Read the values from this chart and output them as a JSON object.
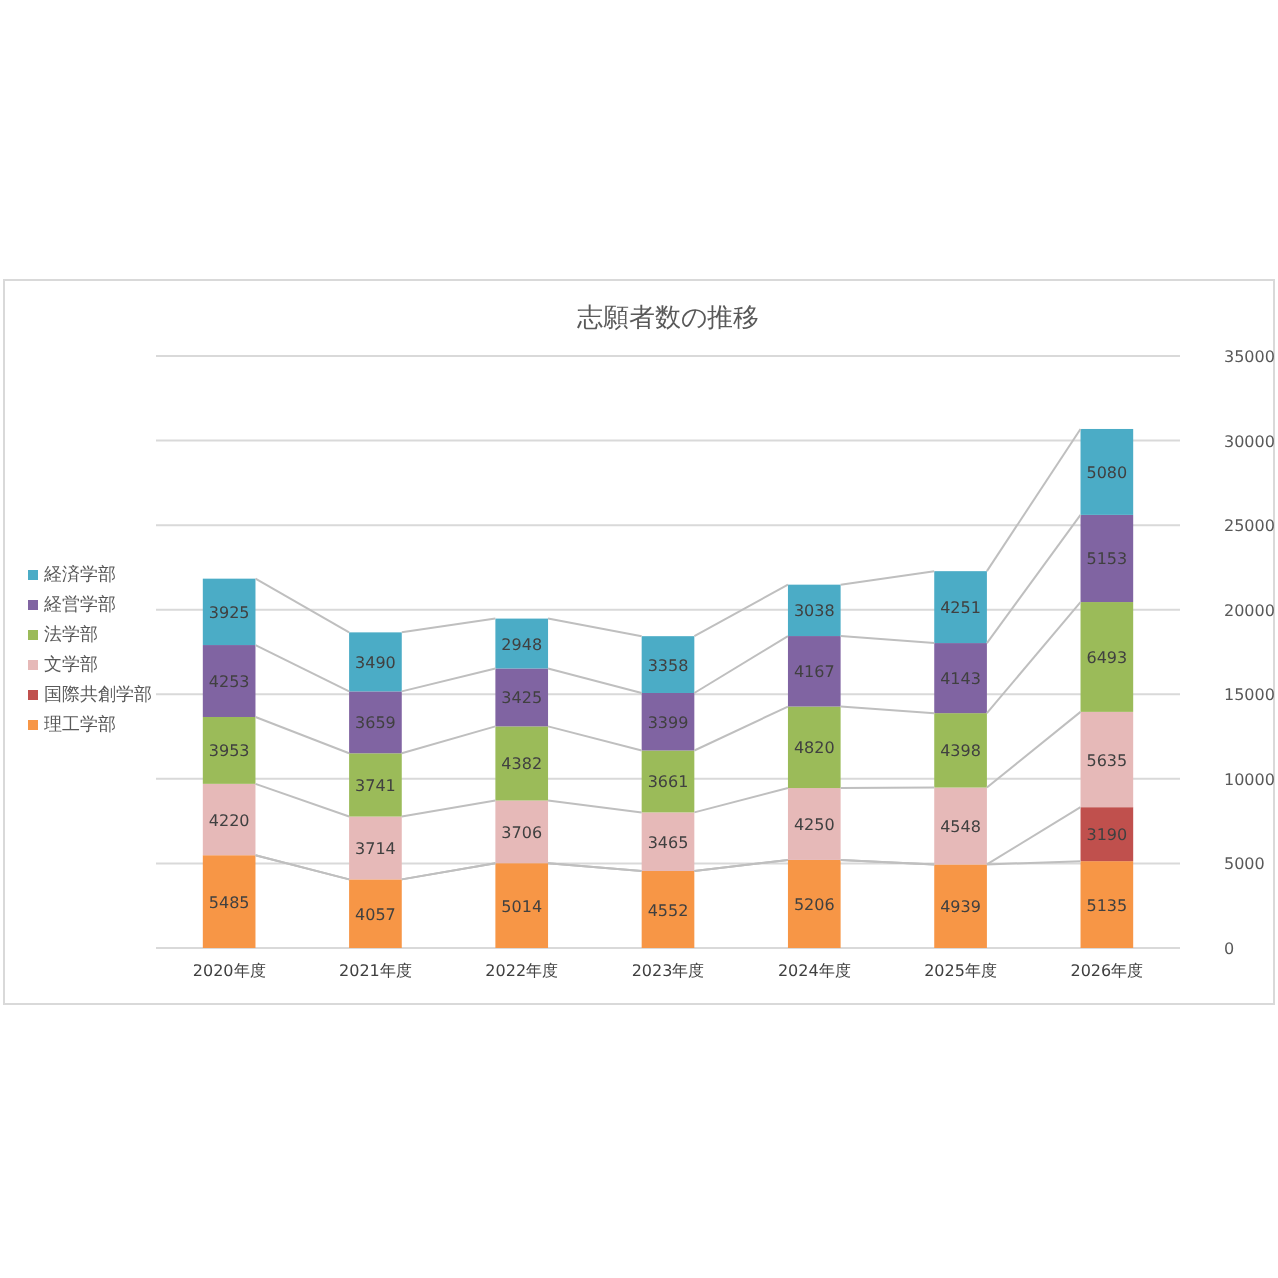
{
  "chart_data": {
    "type": "bar",
    "stacked": true,
    "title": "志願者数の推移",
    "categories": [
      "2020年度",
      "2021年度",
      "2022年度",
      "2023年度",
      "2024年度",
      "2025年度",
      "2026年度"
    ],
    "series": [
      {
        "name": "理工学部",
        "color": "#f79646",
        "values": [
          5485,
          4057,
          5014,
          4552,
          5206,
          4939,
          5135
        ]
      },
      {
        "name": "国際共創学部",
        "color": "#c0504d",
        "values": [
          null,
          null,
          null,
          null,
          null,
          null,
          3190
        ]
      },
      {
        "name": "文学部",
        "color": "#e6b9b8",
        "values": [
          4220,
          3714,
          3706,
          3465,
          4250,
          4548,
          5635
        ]
      },
      {
        "name": "法学部",
        "color": "#9bbb59",
        "values": [
          3953,
          3741,
          4382,
          3661,
          4820,
          4398,
          6493
        ]
      },
      {
        "name": "経営学部",
        "color": "#8064a2",
        "values": [
          4253,
          3659,
          3425,
          3399,
          4167,
          4143,
          5153
        ]
      },
      {
        "name": "経済学部",
        "color": "#4bacc6",
        "values": [
          3925,
          3490,
          2948,
          3358,
          3038,
          4251,
          5080
        ]
      }
    ],
    "ylim": [
      0,
      35000
    ],
    "yticks": [
      0,
      5000,
      10000,
      15000,
      20000,
      25000,
      30000,
      35000
    ],
    "grid": "y",
    "legend": "left",
    "data_labels": true
  }
}
